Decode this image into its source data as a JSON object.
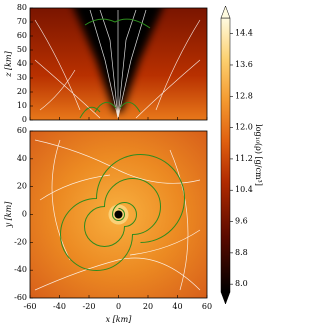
{
  "chart_data": [
    {
      "type": "heatmap",
      "ylabel": "z [km]",
      "xlim": [
        -60,
        60
      ],
      "ylim": [
        0,
        80
      ],
      "xticks": [
        -60,
        -40,
        -20,
        0,
        20,
        40,
        60
      ],
      "yticks": [
        0,
        10,
        20,
        30,
        40,
        50,
        60,
        70,
        80
      ]
    },
    {
      "type": "heatmap",
      "xlabel": "x [km]",
      "ylabel": "y [km]",
      "xlim": [
        -60,
        60
      ],
      "ylim": [
        -60,
        60
      ],
      "xticks": [
        -60,
        -40,
        -20,
        0,
        20,
        40,
        60
      ],
      "yticks": [
        -60,
        -40,
        -20,
        0,
        20,
        40,
        60
      ],
      "colorbar": {
        "label": "log₁₀(ρ) [g/cm³]",
        "lim": [
          7.8,
          14.8
        ],
        "ticks": [
          {
            "value": 8,
            "label": "8.0"
          },
          8.8,
          9.6,
          10.4,
          11.2,
          {
            "value": 12,
            "label": "12.0"
          },
          12.8,
          13.6,
          14.4
        ]
      }
    }
  ]
}
